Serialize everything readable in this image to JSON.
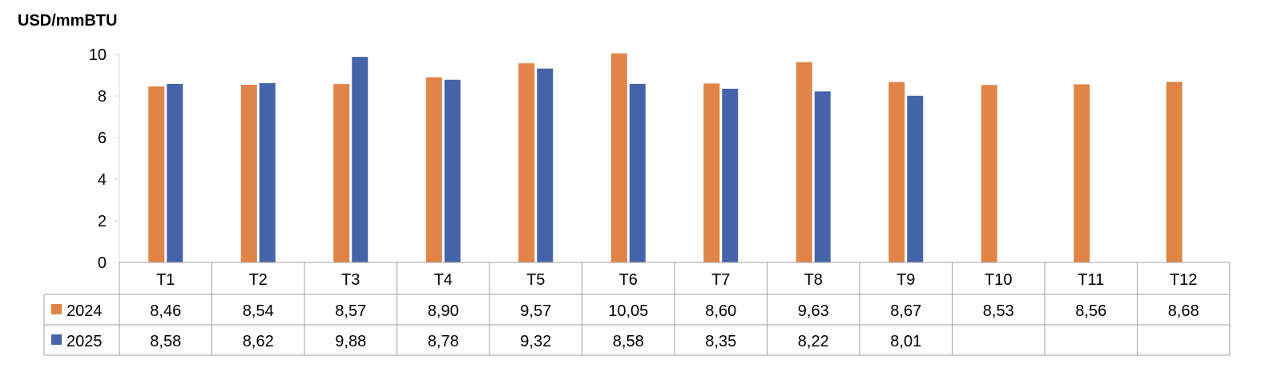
{
  "chart_data": {
    "type": "bar",
    "title": "",
    "ylabel": "USD/mmBTU",
    "xlabel": "",
    "ylim": [
      0,
      10
    ],
    "yticks": [
      0,
      2,
      4,
      6,
      8,
      10
    ],
    "grid": false,
    "legend": "data-table-left",
    "categories": [
      "T1",
      "T2",
      "T3",
      "T4",
      "T5",
      "T6",
      "T7",
      "T8",
      "T9",
      "T10",
      "T11",
      "T12"
    ],
    "series": [
      {
        "name": "2024",
        "color": "#E08447",
        "values": [
          8.46,
          8.54,
          8.57,
          8.9,
          9.57,
          10.05,
          8.6,
          9.63,
          8.67,
          8.53,
          8.56,
          8.68
        ],
        "labels": [
          "8,46",
          "8,54",
          "8,57",
          "8,90",
          "9,57",
          "10,05",
          "8,60",
          "9,63",
          "8,67",
          "8,53",
          "8,56",
          "8,68"
        ]
      },
      {
        "name": "2025",
        "color": "#4563A9",
        "values": [
          8.58,
          8.62,
          9.88,
          8.78,
          9.32,
          8.58,
          8.35,
          8.22,
          8.01,
          null,
          null,
          null
        ],
        "labels": [
          "8,58",
          "8,62",
          "9,88",
          "8,78",
          "9,32",
          "8,58",
          "8,35",
          "8,22",
          "8,01",
          "",
          "",
          ""
        ]
      }
    ]
  }
}
